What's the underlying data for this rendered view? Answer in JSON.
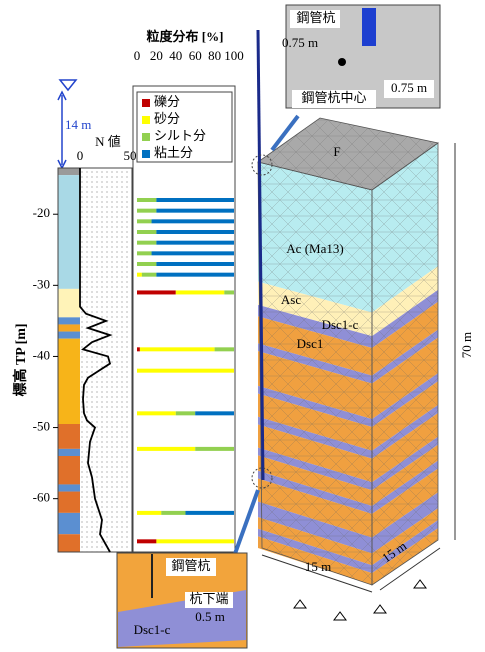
{
  "water_depth_label": "14 m",
  "soil_chart": {
    "type": "profile",
    "y_label": "標高 TP [m]",
    "ylim": [
      -13.5,
      -67.5
    ],
    "yticks": [
      -20,
      -30,
      -40,
      -50,
      -60
    ],
    "n_label": "N 値",
    "nlim": [
      0,
      50
    ],
    "nticks": [
      0,
      50
    ],
    "layers": [
      {
        "top": -13.5,
        "bottom": -14.5,
        "color": "#9a9a9a"
      },
      {
        "top": -14.5,
        "bottom": -30.5,
        "color": "#a9d9e6"
      },
      {
        "top": -30.5,
        "bottom": -34.5,
        "color": "#fff3b8"
      },
      {
        "top": -34.5,
        "bottom": -35.5,
        "color": "#5b8fd1"
      },
      {
        "top": -35.5,
        "bottom": -36.5,
        "color": "#f5a623"
      },
      {
        "top": -36.5,
        "bottom": -37.5,
        "color": "#5b8fd1"
      },
      {
        "top": -37.5,
        "bottom": -49.5,
        "color": "#f7b419"
      },
      {
        "top": -49.5,
        "bottom": -53,
        "color": "#e0702a"
      },
      {
        "top": -53,
        "bottom": -54,
        "color": "#5b8fd1"
      },
      {
        "top": -54,
        "bottom": -58,
        "color": "#e0702a"
      },
      {
        "top": -58,
        "bottom": -59,
        "color": "#5b8fd1"
      },
      {
        "top": -59,
        "bottom": -62,
        "color": "#e0702a"
      },
      {
        "top": -62,
        "bottom": -65,
        "color": "#5b8fd1"
      },
      {
        "top": -65,
        "bottom": -67.5,
        "color": "#e0702a"
      }
    ],
    "n_depths": [
      -13.5,
      -33,
      -34,
      -35,
      -36,
      -37,
      -38,
      -39,
      -40,
      -41,
      -43,
      -44,
      -46,
      -48,
      -49,
      -50,
      -52,
      -55,
      -57,
      -60,
      -63,
      -65,
      -67.5
    ],
    "n_values": [
      0,
      0,
      6,
      26,
      8,
      30,
      12,
      3,
      28,
      30,
      8,
      4,
      3,
      4,
      7,
      15,
      10,
      8,
      12,
      15,
      22,
      20,
      30
    ]
  },
  "grain_chart": {
    "type": "stacked-bar",
    "title": "粒度分布 [%]",
    "xlim": [
      0,
      100
    ],
    "xticks": [
      0,
      20,
      40,
      60,
      80,
      100
    ],
    "depths": [
      -18,
      -19.5,
      -21,
      -22.5,
      -24,
      -25.5,
      -27,
      -28.5,
      -31,
      -39,
      -42,
      -48,
      -53,
      -62,
      -66
    ],
    "series": [
      {
        "name": "礫分",
        "color": "#c00000",
        "values": [
          0,
          0,
          0,
          0,
          0,
          0,
          0,
          0,
          40,
          3,
          0,
          0,
          0,
          0,
          20
        ]
      },
      {
        "name": "砂分",
        "color": "#ffff00",
        "values": [
          0,
          0,
          0,
          0,
          0,
          0,
          0,
          5,
          50,
          77,
          100,
          40,
          60,
          25,
          80
        ]
      },
      {
        "name": "シルト分",
        "color": "#92d050",
        "values": [
          20,
          20,
          15,
          20,
          20,
          15,
          20,
          15,
          10,
          20,
          0,
          20,
          40,
          25,
          0
        ]
      },
      {
        "name": "粘土分",
        "color": "#0070c0",
        "values": [
          80,
          80,
          85,
          80,
          80,
          85,
          80,
          80,
          0,
          0,
          0,
          40,
          0,
          50,
          0
        ]
      }
    ]
  },
  "model": {
    "top_label": "F",
    "layer_labels": [
      "Ac (Ma13)",
      "Asc",
      "Dsc1-c",
      "Dsc1"
    ],
    "height_label": "70 m",
    "width_label": "15 m",
    "depth_label": "15 m"
  },
  "inset_top": {
    "pile_label": "鋼管杭",
    "radius_label_left": "0.75 m",
    "center_label": "鋼管杭中心",
    "radius_label_right": "0.75 m"
  },
  "inset_bottom": {
    "pile_label": "鋼管杭",
    "tip_label": "杭下端",
    "offset_label": "0.5 m",
    "layer_label": "Dsc1-c"
  }
}
